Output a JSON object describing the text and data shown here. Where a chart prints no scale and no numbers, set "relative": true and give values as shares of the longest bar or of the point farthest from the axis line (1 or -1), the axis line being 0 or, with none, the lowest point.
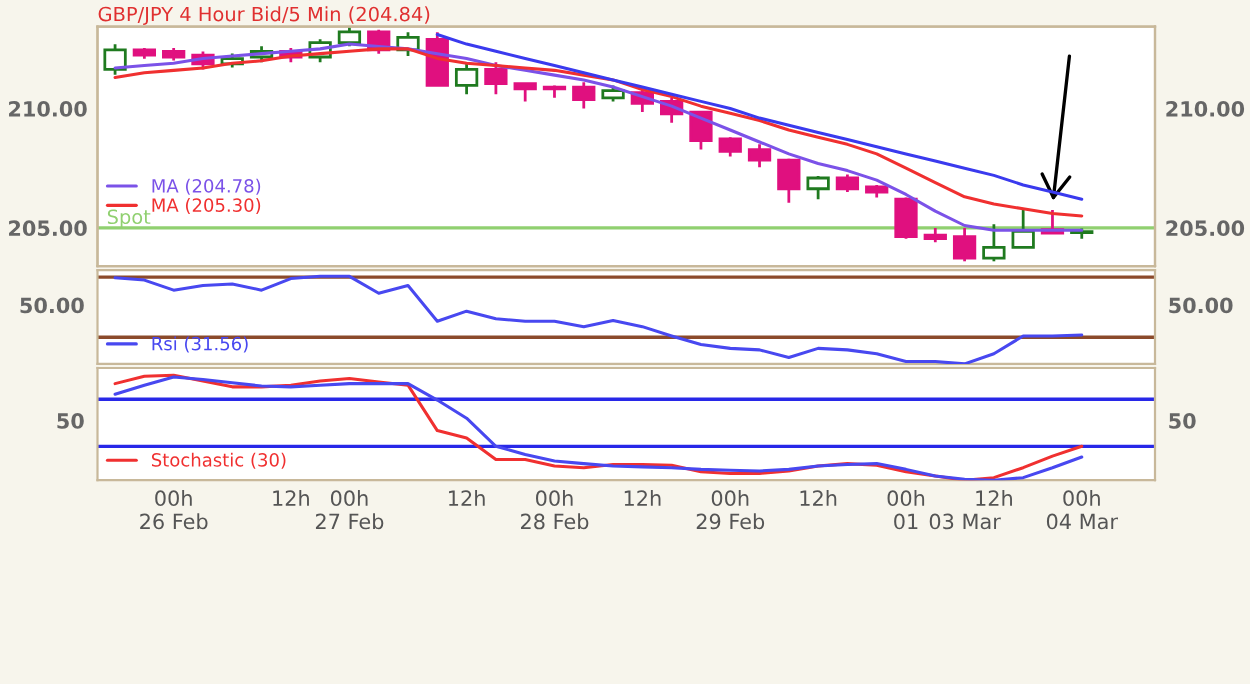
{
  "chart_data": [
    {
      "type": "candlestick",
      "title": "GBP/JPY 4 Hour Bid/5 Min (204.84)",
      "categories": [
        null,
        null,
        null,
        null,
        null,
        null,
        null,
        null,
        null,
        null,
        null,
        null,
        null,
        null,
        null,
        null,
        null,
        null,
        null,
        null,
        null,
        null,
        null,
        null,
        null,
        null,
        null,
        null,
        null,
        null,
        null,
        null,
        null,
        null
      ],
      "ohlc": [
        [
          211.64,
          212.69,
          211.42,
          212.46
        ],
        [
          212.46,
          212.54,
          212.09,
          212.24
        ],
        [
          212.39,
          212.54,
          212.01,
          212.16
        ],
        [
          212.24,
          212.39,
          211.64,
          211.87
        ],
        [
          211.87,
          212.31,
          211.72,
          212.09
        ],
        [
          212.16,
          212.61,
          211.94,
          212.39
        ],
        [
          212.39,
          212.54,
          211.94,
          212.16
        ],
        [
          212.16,
          212.9,
          211.94,
          212.76
        ],
        [
          212.76,
          213.4,
          212.61,
          213.21
        ],
        [
          213.21,
          213.3,
          212.3,
          212.46
        ],
        [
          212.46,
          213.2,
          212.2,
          212.98
        ],
        [
          212.9,
          213.2,
          210.97,
          210.97
        ],
        [
          210.97,
          211.9,
          210.6,
          211.64
        ],
        [
          211.64,
          211.94,
          210.6,
          211.04
        ],
        [
          211.04,
          211.04,
          210.3,
          210.82
        ],
        [
          210.9,
          210.97,
          210.45,
          210.82
        ],
        [
          210.9,
          211.1,
          210.0,
          210.37
        ],
        [
          210.45,
          210.97,
          210.3,
          210.75
        ],
        [
          210.67,
          210.82,
          209.85,
          210.22
        ],
        [
          210.3,
          210.45,
          209.4,
          209.78
        ],
        [
          209.85,
          209.9,
          208.28,
          208.66
        ],
        [
          208.73,
          208.8,
          207.99,
          208.21
        ],
        [
          208.28,
          208.5,
          207.54,
          207.84
        ],
        [
          207.84,
          207.9,
          206.05,
          206.64
        ],
        [
          206.64,
          207.17,
          206.2,
          207.09
        ],
        [
          207.09,
          207.24,
          206.5,
          206.64
        ],
        [
          206.72,
          206.8,
          206.27,
          206.5
        ],
        [
          206.2,
          206.27,
          204.55,
          204.63
        ],
        [
          204.7,
          205.0,
          204.4,
          204.55
        ],
        [
          204.63,
          205.0,
          203.6,
          203.73
        ],
        [
          203.73,
          205.15,
          203.6,
          204.18
        ],
        [
          204.18,
          205.82,
          204.18,
          204.85
        ],
        [
          204.93,
          205.75,
          204.78,
          204.78
        ],
        [
          204.8,
          204.97,
          204.55,
          204.84
        ]
      ],
      "colors": [
        "#1f7a1f",
        "#e0107f",
        "#e0107f",
        "#e0107f",
        "#1f7a1f",
        "#1f7a1f",
        "#e0107f",
        "#1f7a1f",
        "#1f7a1f",
        "#e0107f",
        "#1f7a1f",
        "#e0107f",
        "#1f7a1f",
        "#e0107f",
        "#e0107f",
        "#e0107f",
        "#e0107f",
        "#1f7a1f",
        "#e0107f",
        "#e0107f",
        "#e0107f",
        "#e0107f",
        "#e0107f",
        "#e0107f",
        "#1f7a1f",
        "#e0107f",
        "#e0107f",
        "#e0107f",
        "#e0107f",
        "#e0107f",
        "#1f7a1f",
        "#1f7a1f",
        "#e0107f",
        "#1f7a1f"
      ],
      "series": [
        {
          "name": "MA (204.78)",
          "type": "line",
          "color": "#7b52e8",
          "values": [
            211.7,
            211.8,
            211.9,
            212.1,
            212.2,
            212.3,
            212.4,
            212.5,
            212.7,
            212.6,
            212.5,
            212.3,
            212.1,
            211.8,
            211.6,
            211.4,
            211.2,
            210.9,
            210.5,
            210.1,
            209.6,
            209.1,
            208.6,
            208.1,
            207.7,
            207.4,
            207.0,
            206.4,
            205.7,
            205.1,
            204.9,
            204.9,
            204.9,
            204.9
          ]
        },
        {
          "name": "MA (205.30)",
          "type": "line",
          "color": "#f03030",
          "values": [
            211.3,
            211.5,
            211.6,
            211.7,
            211.9,
            212.0,
            212.2,
            212.3,
            212.4,
            212.5,
            212.5,
            212.1,
            211.9,
            211.8,
            211.7,
            211.6,
            211.4,
            211.2,
            210.8,
            210.5,
            210.1,
            209.8,
            209.5,
            209.1,
            208.8,
            208.5,
            208.1,
            207.5,
            206.9,
            206.3,
            206.0,
            205.8,
            205.6,
            205.5
          ]
        },
        {
          "type": "line",
          "color": "#3a3aee",
          "values": [
            null,
            null,
            null,
            null,
            null,
            null,
            null,
            null,
            null,
            null,
            null,
            213.1,
            212.7,
            212.4,
            212.1,
            211.8,
            211.5,
            211.2,
            210.9,
            210.6,
            210.3,
            210.0,
            209.6,
            209.3,
            209.0,
            208.7,
            208.4,
            208.1,
            207.8,
            207.5,
            207.2,
            206.8,
            206.5,
            206.2
          ]
        }
      ],
      "ref_lines": [
        {
          "axis": "y",
          "value": 205.0,
          "label": "Spot",
          "color": "#90d070"
        }
      ],
      "ylim": [
        203.4,
        213.43
      ],
      "yticks": [
        {
          "value": 210,
          "label": "210.00"
        },
        {
          "value": 205,
          "label": "205.00"
        }
      ],
      "y2lim": [
        203.4,
        213.43
      ],
      "y2ticks": [
        {
          "value": 210,
          "label": "210.00"
        },
        {
          "value": 205,
          "label": "205.00"
        }
      ],
      "tick_labels": "y",
      "legend": "bottom left"
    },
    {
      "type": "line",
      "relative": true,
      "categories": [
        null,
        null,
        null,
        null,
        null,
        null,
        null,
        null,
        null,
        null,
        null,
        null,
        null,
        null,
        null,
        null,
        null,
        null,
        null,
        null,
        null,
        null,
        null,
        null,
        null,
        null,
        null,
        null,
        null,
        null,
        null,
        null,
        null,
        null
      ],
      "series": [
        {
          "name": "Rsi (31.56)",
          "color": "#4848f0",
          "values": [
            0.983,
            0.957,
            0.842,
            0.894,
            0.913,
            0.842,
            0.974,
            1,
            1,
            0.806,
            0.894,
            0.487,
            0.602,
            0.515,
            0.487,
            0.487,
            0.425,
            0.496,
            0.425,
            0.319,
            0.221,
            0.177,
            0.16,
            0.072,
            0.177,
            0.16,
            0.115,
            0.027,
            0.027,
            0,
            0.115,
            0.319,
            0.319,
            0.33
          ]
        }
      ],
      "ref_lines": [
        {
          "axis": "y",
          "value": 0.99,
          "color": "#8b4a2b"
        },
        {
          "axis": "y",
          "value": 0.304,
          "color": "#8b4a2b"
        }
      ],
      "annotations": [
        "50.00",
        "50.00"
      ],
      "tick_labels": false,
      "legend": "bottom left"
    },
    {
      "type": "line",
      "relative": true,
      "categories": [
        null,
        null,
        "00h\n26 Feb",
        null,
        null,
        null,
        "12h",
        null,
        "00h\n27 Feb",
        null,
        null,
        null,
        "12h",
        null,
        null,
        "00h\n28 Feb",
        null,
        null,
        "12h",
        null,
        null,
        "00h\n29 Feb",
        null,
        null,
        "12h",
        null,
        null,
        "00h\n01",
        null,
        "\n03 Mar",
        "12h",
        null,
        null,
        "00h\n04 Mar"
      ],
      "series": [
        {
          "name": "Stochastic (30)",
          "color": "#f03030",
          "values": [
            0.921,
            0.992,
            1,
            0.945,
            0.89,
            0.89,
            0.906,
            0.945,
            0.969,
            0.937,
            0.906,
            0.473,
            0.402,
            0.198,
            0.198,
            0.135,
            0.119,
            0.15,
            0.15,
            0.143,
            0.08,
            0.064,
            0.064,
            0.088,
            0.135,
            0.158,
            0.143,
            0.08,
            0.039,
            0,
            0.024,
            0.119,
            0.229,
            0.323
          ]
        },
        {
          "color": "#4848f0",
          "values": [
            0.819,
            0.906,
            0.984,
            0.961,
            0.929,
            0.898,
            0.89,
            0.906,
            0.921,
            0.921,
            0.921,
            0.764,
            0.591,
            0.323,
            0.245,
            0.182,
            0.158,
            0.135,
            0.127,
            0.119,
            0.103,
            0.095,
            0.088,
            0.103,
            0.135,
            0.15,
            0.158,
            0.103,
            0.039,
            0.008,
            0,
            0.024,
            0.119,
            0.221
          ]
        }
      ],
      "ref_lines": [
        {
          "axis": "y",
          "value": 0.772,
          "color": "#2828e8"
        },
        {
          "axis": "y",
          "value": 0.323,
          "color": "#2828e8"
        }
      ],
      "annotations": [
        "50",
        "50"
      ],
      "tick_labels": "x",
      "legend": "bottom left"
    }
  ]
}
